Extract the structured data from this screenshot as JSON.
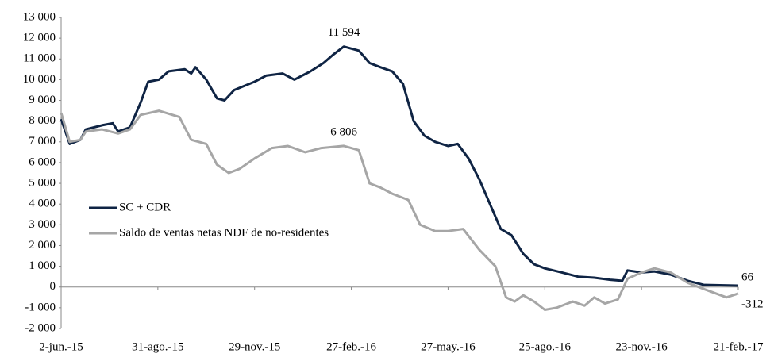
{
  "chart_data": {
    "type": "line",
    "xlim": [
      "2015-06-02",
      "2017-02-21"
    ],
    "xticks": [
      {
        "value": "2015-06-02",
        "label": "2-jun.-15"
      },
      {
        "value": "2015-08-31",
        "label": "31-ago.-15"
      },
      {
        "value": "2015-11-29",
        "label": "29-nov.-15"
      },
      {
        "value": "2016-02-27",
        "label": "27-feb.-16"
      },
      {
        "value": "2016-05-27",
        "label": "27-may.-16"
      },
      {
        "value": "2016-08-25",
        "label": "25-ago.-16"
      },
      {
        "value": "2016-11-23",
        "label": "23-nov.-16"
      },
      {
        "value": "2017-02-21",
        "label": "21-feb.-17"
      }
    ],
    "ylim": [
      -2000,
      13000
    ],
    "yticks": [
      {
        "value": -2000,
        "label": "-2 000"
      },
      {
        "value": -1000,
        "label": "-1 000"
      },
      0,
      {
        "value": 1000,
        "label": "1 000"
      },
      {
        "value": 2000,
        "label": "2 000"
      },
      {
        "value": 3000,
        "label": "3 000"
      },
      {
        "value": 4000,
        "label": "4 000"
      },
      {
        "value": 5000,
        "label": "5 000"
      },
      {
        "value": 6000,
        "label": "6 000"
      },
      {
        "value": 7000,
        "label": "7 000"
      },
      {
        "value": 8000,
        "label": "8 000"
      },
      {
        "value": 9000,
        "label": "9 000"
      },
      {
        "value": 10000,
        "label": "10 000"
      },
      {
        "value": 11000,
        "label": "11 000"
      },
      {
        "value": 12000,
        "label": "12 000"
      },
      {
        "value": 13000,
        "label": "13 000"
      }
    ],
    "grid": false,
    "legend": "left",
    "series": [
      {
        "name": "SC + CDR",
        "color": "#0f2444",
        "x": [
          "2015-06-02",
          "2015-06-10",
          "2015-06-20",
          "2015-06-25",
          "2015-07-10",
          "2015-07-20",
          "2015-07-25",
          "2015-08-05",
          "2015-08-15",
          "2015-08-22",
          "2015-09-01",
          "2015-09-10",
          "2015-09-25",
          "2015-10-01",
          "2015-10-05",
          "2015-10-15",
          "2015-10-25",
          "2015-11-01",
          "2015-11-10",
          "2015-11-29",
          "2015-12-10",
          "2015-12-25",
          "2016-01-05",
          "2016-01-20",
          "2016-02-01",
          "2016-02-10",
          "2016-02-20",
          "2016-03-05",
          "2016-03-15",
          "2016-03-25",
          "2016-04-05",
          "2016-04-15",
          "2016-04-25",
          "2016-05-05",
          "2016-05-15",
          "2016-05-27",
          "2016-06-05",
          "2016-06-15",
          "2016-06-25",
          "2016-07-05",
          "2016-07-15",
          "2016-07-25",
          "2016-08-05",
          "2016-08-15",
          "2016-08-25",
          "2016-09-10",
          "2016-09-25",
          "2016-10-10",
          "2016-10-25",
          "2016-11-05",
          "2016-11-10",
          "2016-11-23",
          "2016-12-05",
          "2016-12-20",
          "2017-01-05",
          "2017-01-20",
          "2017-02-21"
        ],
        "values": [
          8100,
          6900,
          7100,
          7600,
          7800,
          7900,
          7500,
          7700,
          8900,
          9900,
          10000,
          10400,
          10500,
          10300,
          10600,
          10000,
          9100,
          9000,
          9500,
          9900,
          10200,
          10300,
          10000,
          10400,
          10800,
          11200,
          11594,
          11400,
          10800,
          10600,
          10400,
          9800,
          8000,
          7300,
          7000,
          6800,
          6900,
          6200,
          5200,
          4000,
          2800,
          2500,
          1600,
          1100,
          900,
          700,
          500,
          450,
          350,
          300,
          800,
          700,
          750,
          600,
          300,
          100,
          66
        ],
        "value_labels": [
          null,
          null,
          null,
          null,
          null,
          null,
          null,
          null,
          null,
          null,
          null,
          null,
          null,
          null,
          null,
          null,
          null,
          null,
          null,
          null,
          null,
          null,
          null,
          null,
          null,
          null,
          "11 594",
          null,
          null,
          null,
          null,
          null,
          null,
          null,
          null,
          null,
          null,
          null,
          null,
          null,
          null,
          null,
          null,
          null,
          null,
          null,
          null,
          null,
          null,
          null,
          null,
          null,
          null,
          null,
          null,
          null,
          "66"
        ]
      },
      {
        "name": "Saldo de ventas netas NDF de no-residentes",
        "color": "#a6a6a6",
        "x": [
          "2015-06-02",
          "2015-06-10",
          "2015-06-20",
          "2015-06-25",
          "2015-07-10",
          "2015-07-25",
          "2015-08-05",
          "2015-08-15",
          "2015-09-01",
          "2015-09-20",
          "2015-10-01",
          "2015-10-15",
          "2015-10-25",
          "2015-11-05",
          "2015-11-15",
          "2015-11-29",
          "2015-12-15",
          "2015-12-30",
          "2016-01-15",
          "2016-01-30",
          "2016-02-20",
          "2016-03-05",
          "2016-03-15",
          "2016-03-25",
          "2016-04-05",
          "2016-04-20",
          "2016-05-01",
          "2016-05-15",
          "2016-05-27",
          "2016-06-10",
          "2016-06-25",
          "2016-07-10",
          "2016-07-20",
          "2016-07-28",
          "2016-08-05",
          "2016-08-15",
          "2016-08-25",
          "2016-09-05",
          "2016-09-20",
          "2016-10-01",
          "2016-10-10",
          "2016-10-20",
          "2016-11-01",
          "2016-11-10",
          "2016-11-23",
          "2016-12-05",
          "2016-12-20",
          "2017-01-05",
          "2017-01-20",
          "2017-02-10",
          "2017-02-21"
        ],
        "values": [
          8400,
          7000,
          7100,
          7500,
          7600,
          7400,
          7600,
          8300,
          8500,
          8200,
          7100,
          6900,
          5900,
          5500,
          5700,
          6200,
          6700,
          6800,
          6500,
          6700,
          6806,
          6600,
          5000,
          4800,
          4500,
          4200,
          3000,
          2700,
          2700,
          2800,
          1800,
          1000,
          -500,
          -700,
          -400,
          -700,
          -1100,
          -1000,
          -700,
          -900,
          -500,
          -800,
          -600,
          400,
          700,
          900,
          700,
          200,
          -100,
          -500,
          -312
        ],
        "value_labels": [
          null,
          null,
          null,
          null,
          null,
          null,
          null,
          null,
          null,
          null,
          null,
          null,
          null,
          null,
          null,
          null,
          null,
          null,
          null,
          null,
          "6 806",
          null,
          null,
          null,
          null,
          null,
          null,
          null,
          null,
          null,
          null,
          null,
          null,
          null,
          null,
          null,
          null,
          null,
          null,
          null,
          null,
          null,
          null,
          null,
          null,
          null,
          null,
          null,
          null,
          null,
          "-312"
        ]
      }
    ]
  }
}
